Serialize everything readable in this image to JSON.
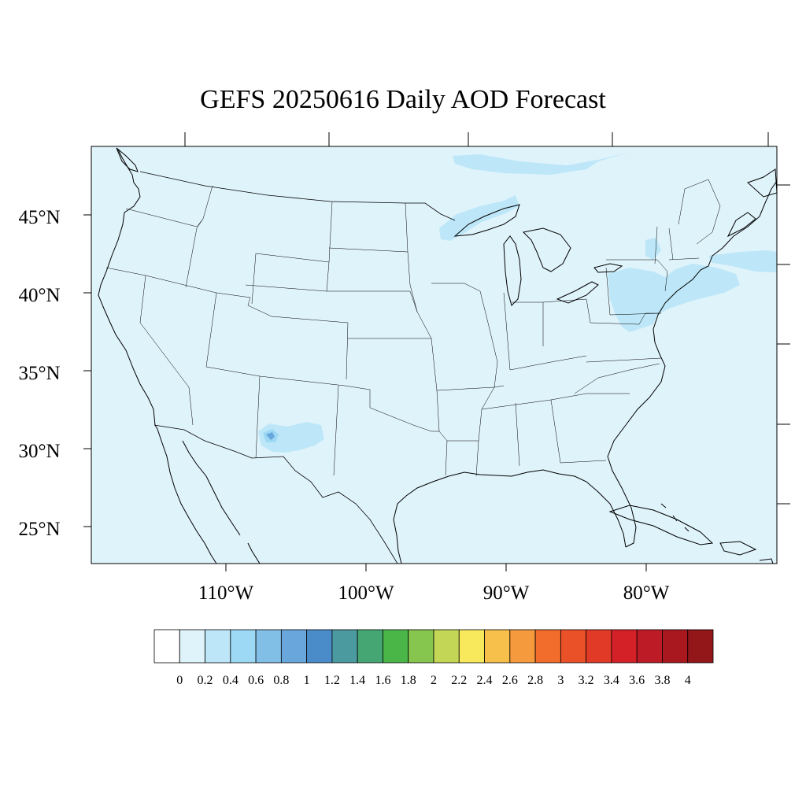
{
  "title": "GEFS 20250616 Daily AOD Forecast",
  "map": {
    "region": "Contiguous United States",
    "lat_range": [
      22.6,
      49.3
    ],
    "lon_range": [
      -118.0,
      -69.0
    ],
    "background_level_color": "#dff3fb",
    "lat_labels": [
      {
        "lat": 45,
        "text": "45°N"
      },
      {
        "lat": 40,
        "text": "40°N"
      },
      {
        "lat": 35,
        "text": "35°N"
      },
      {
        "lat": 30,
        "text": "30°N"
      },
      {
        "lat": 25,
        "text": "25°N"
      }
    ],
    "lon_labels": [
      {
        "lon": -110,
        "text": "110°W"
      },
      {
        "lon": -100,
        "text": "100°W"
      },
      {
        "lon": -90,
        "text": "90°W"
      },
      {
        "lon": -80,
        "text": "80°W"
      }
    ]
  },
  "colorbar": {
    "labels": [
      "0",
      "0.2",
      "0.4",
      "0.6",
      "0.8",
      "1",
      "1.2",
      "1.4",
      "1.6",
      "1.8",
      "2",
      "2.2",
      "2.4",
      "2.6",
      "2.8",
      "3",
      "3.2",
      "3.4",
      "3.6",
      "3.8",
      "4"
    ],
    "colors": [
      "#ffffff",
      "#dff3fb",
      "#bde7f8",
      "#9dd8f5",
      "#82bfe7",
      "#68a6dc",
      "#4a8cca",
      "#4a9aa0",
      "#46a673",
      "#4bb648",
      "#86c64e",
      "#c3d655",
      "#f7e85c",
      "#f7c04a",
      "#f59a3d",
      "#f26c2b",
      "#ea5129",
      "#e13a26",
      "#d42128",
      "#bd1b25",
      "#a9181f",
      "#931619"
    ]
  }
}
